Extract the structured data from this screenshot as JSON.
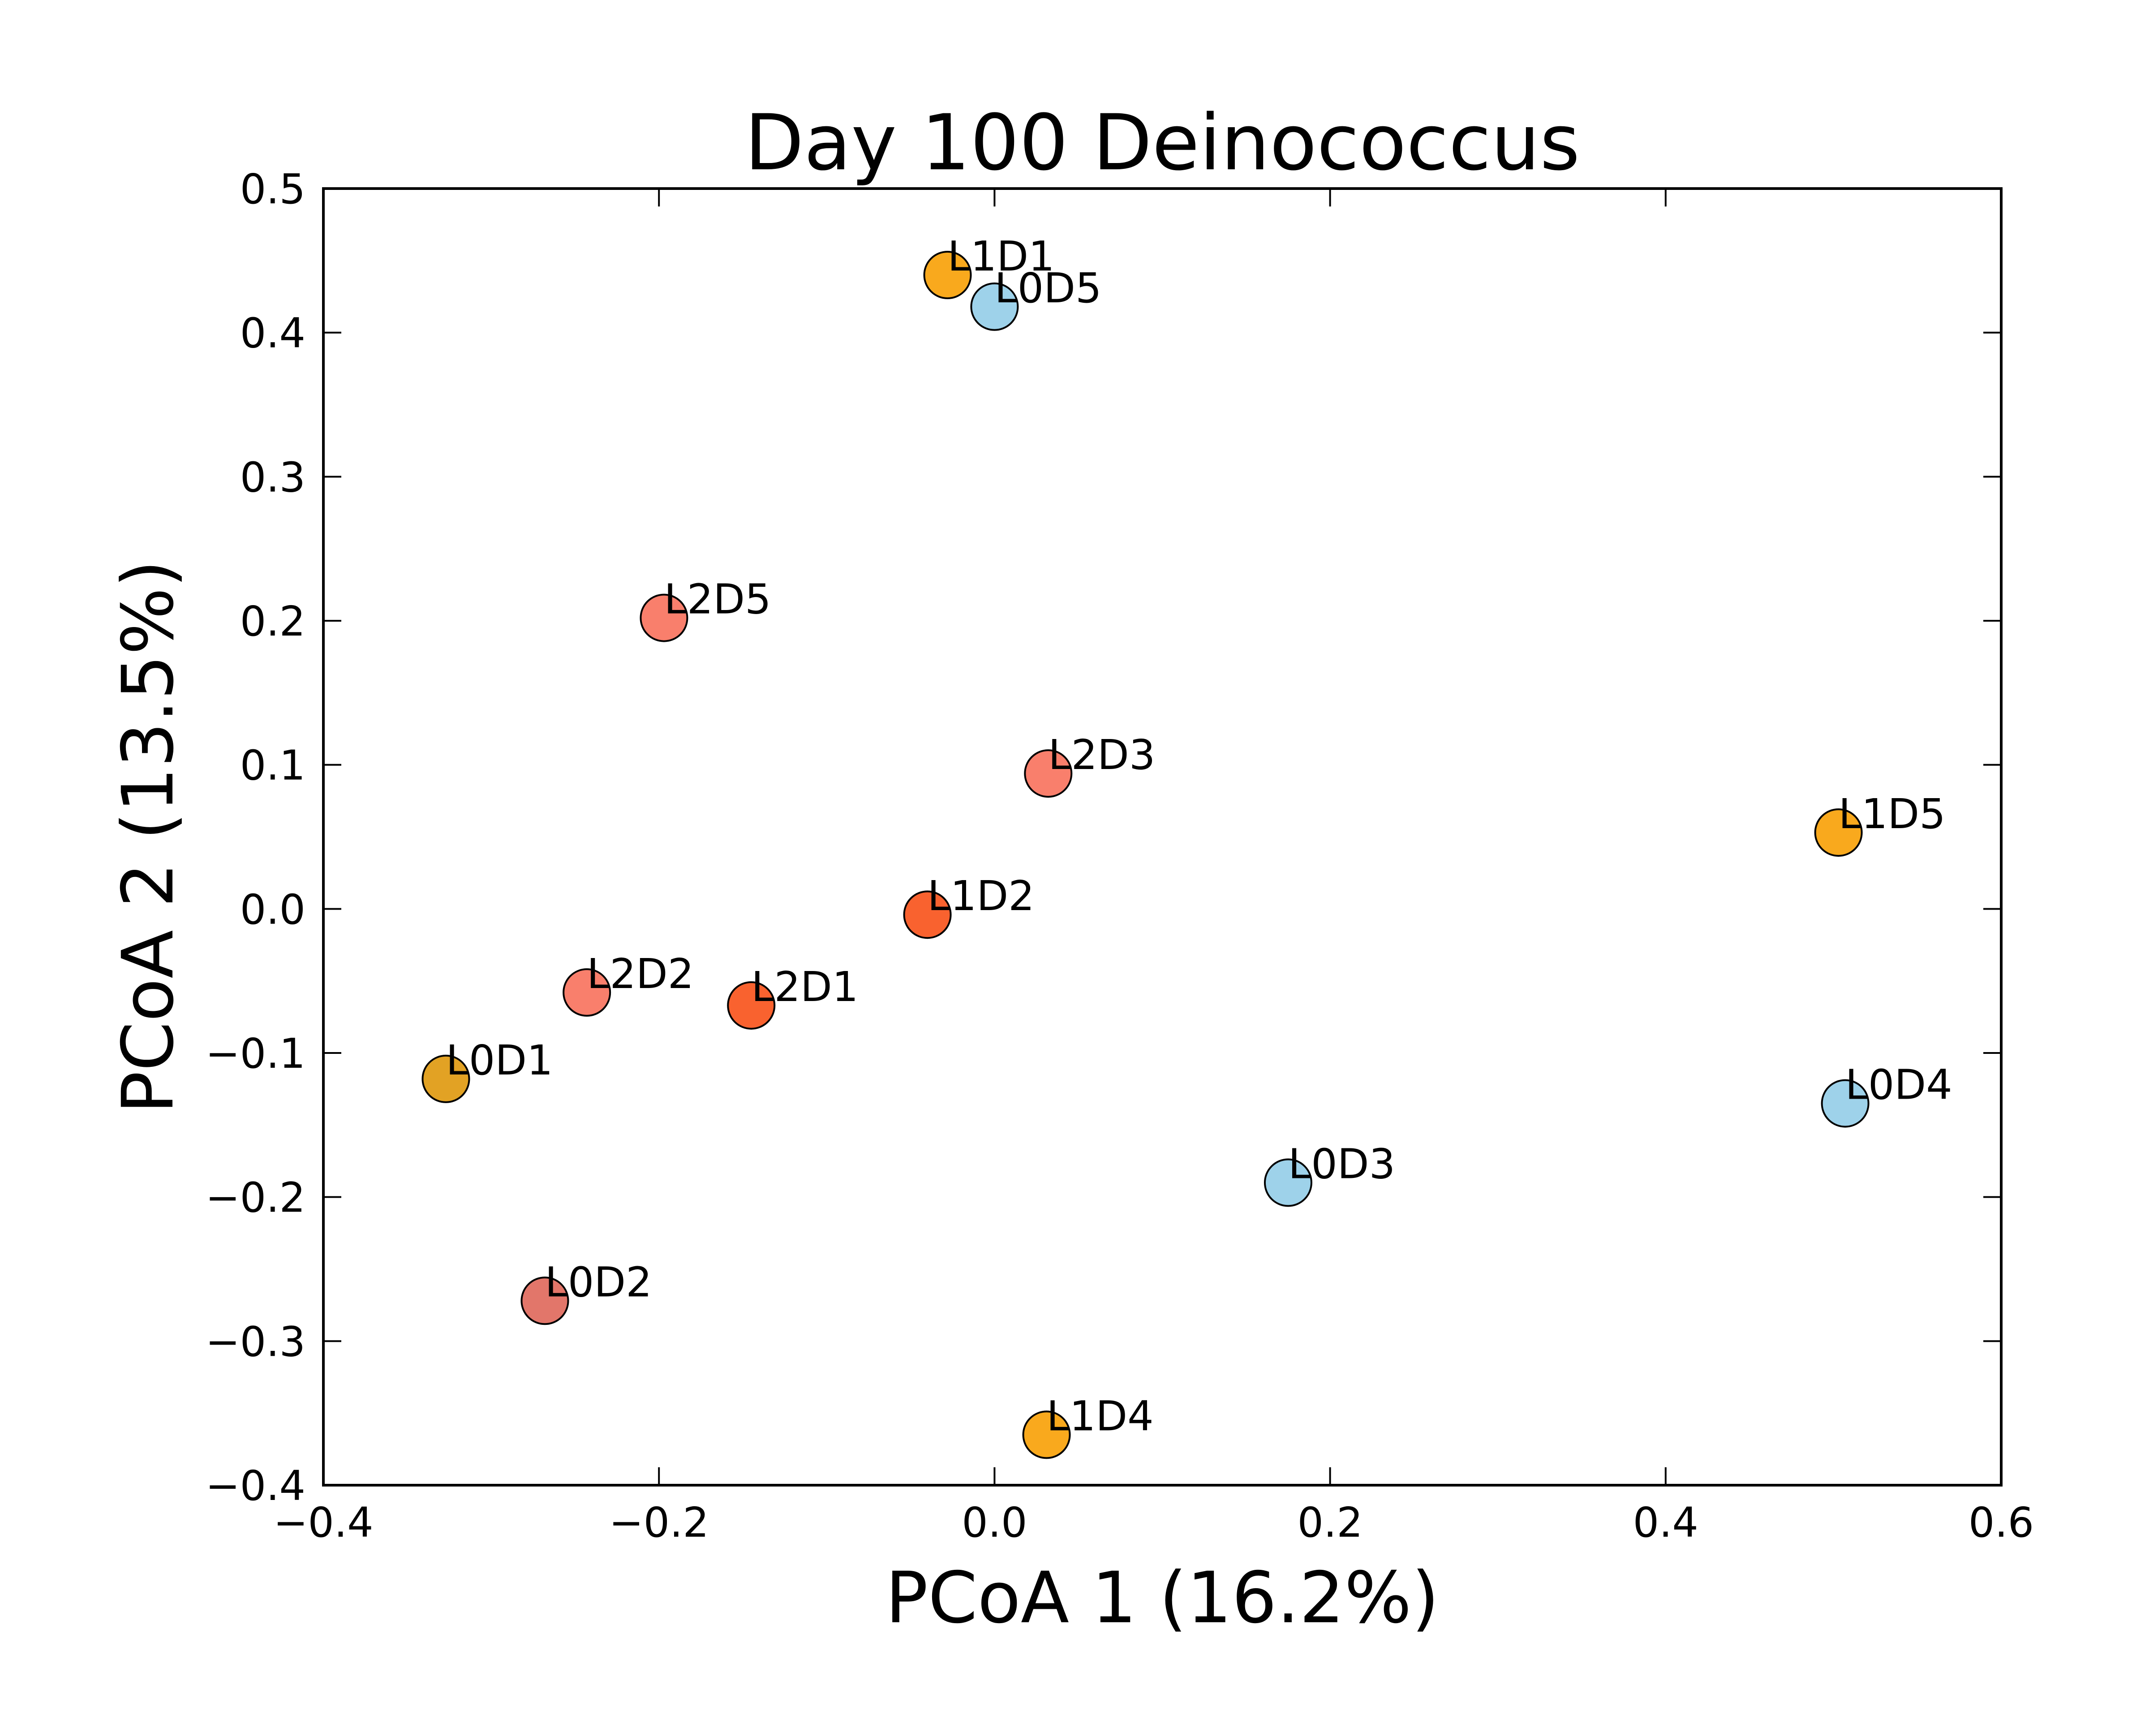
{
  "chart_data": {
    "type": "scatter",
    "title": "Day 100 Deinococcus",
    "xlabel": "PCoA 1 (16.2%)",
    "ylabel": "PCoA 2 (13.5%)",
    "xlim": [
      -0.4,
      0.6
    ],
    "ylim": [
      -0.4,
      0.5
    ],
    "x_ticks": [
      -0.4,
      -0.2,
      0.0,
      0.2,
      0.4,
      0.6
    ],
    "x_tick_labels": [
      "−0.4",
      "−0.2",
      "0.0",
      "0.2",
      "0.4",
      "0.6"
    ],
    "y_ticks": [
      -0.4,
      -0.3,
      -0.2,
      -0.1,
      0.0,
      0.1,
      0.2,
      0.3,
      0.4,
      0.5
    ],
    "y_tick_labels": [
      "−0.4",
      "−0.3",
      "−0.2",
      "−0.1",
      "0.0",
      "0.1",
      "0.2",
      "0.3",
      "0.4",
      "0.5"
    ],
    "grid": false,
    "points": [
      {
        "label": "L1D1",
        "x": -0.028,
        "y": 0.44,
        "color": "#F9A91D"
      },
      {
        "label": "L0D5",
        "x": 0.0,
        "y": 0.418,
        "color": "#9ED2EA"
      },
      {
        "label": "L2D5",
        "x": -0.197,
        "y": 0.202,
        "color": "#F97F6C"
      },
      {
        "label": "L2D3",
        "x": 0.032,
        "y": 0.094,
        "color": "#F97F6C"
      },
      {
        "label": "L1D5",
        "x": 0.503,
        "y": 0.053,
        "color": "#F9A91D"
      },
      {
        "label": "L1D2",
        "x": -0.04,
        "y": -0.004,
        "color": "#F9622F"
      },
      {
        "label": "L2D2",
        "x": -0.243,
        "y": -0.058,
        "color": "#F97F6C"
      },
      {
        "label": "L2D1",
        "x": -0.145,
        "y": -0.067,
        "color": "#F9622F"
      },
      {
        "label": "L0D1",
        "x": -0.327,
        "y": -0.118,
        "color": "#E2A224"
      },
      {
        "label": "L0D4",
        "x": 0.507,
        "y": -0.135,
        "color": "#9ED2EA"
      },
      {
        "label": "L0D3",
        "x": 0.175,
        "y": -0.19,
        "color": "#9ED2EA"
      },
      {
        "label": "L0D2",
        "x": -0.268,
        "y": -0.272,
        "color": "#E2766A"
      },
      {
        "label": "L1D4",
        "x": 0.031,
        "y": -0.365,
        "color": "#F9A91D"
      }
    ]
  }
}
